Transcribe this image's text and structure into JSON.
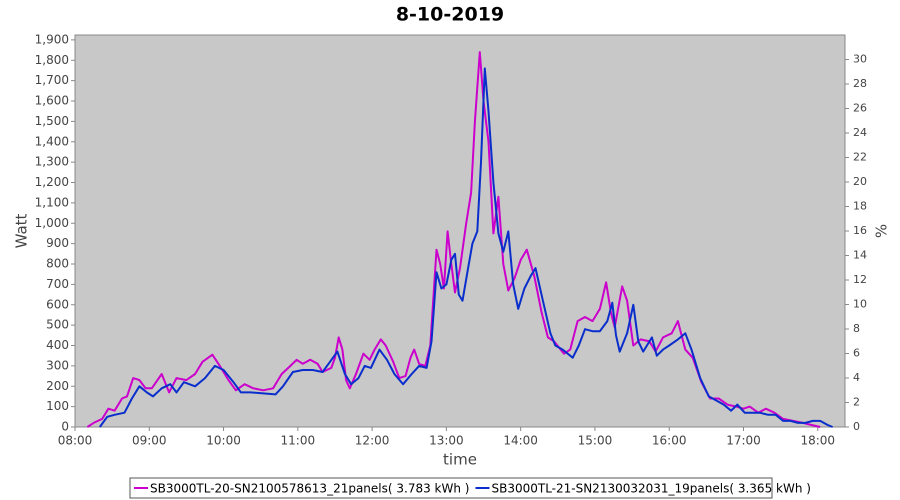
{
  "chart_data": {
    "type": "line",
    "title": "8-10-2019",
    "x_label": "time",
    "y_label": "Watt",
    "y2_label": "%",
    "xlim": [
      480,
      1102
    ],
    "xticks": [
      {
        "value": 480,
        "label": "08:00"
      },
      {
        "value": 540,
        "label": "09:00"
      },
      {
        "value": 600,
        "label": "10:00"
      },
      {
        "value": 660,
        "label": "11:00"
      },
      {
        "value": 720,
        "label": "12:00"
      },
      {
        "value": 780,
        "label": "13:00"
      },
      {
        "value": 840,
        "label": "14:00"
      },
      {
        "value": 900,
        "label": "15:00"
      },
      {
        "value": 960,
        "label": "16:00"
      },
      {
        "value": 1020,
        "label": "17:00"
      },
      {
        "value": 1080,
        "label": "18:00"
      }
    ],
    "ylim": [
      0,
      1924
    ],
    "yticks": [
      0,
      100,
      200,
      300,
      400,
      500,
      600,
      700,
      800,
      900,
      {
        "value": 1000,
        "label": "1,000"
      },
      {
        "value": 1100,
        "label": "1,100"
      },
      {
        "value": 1200,
        "label": "1,200"
      },
      {
        "value": 1300,
        "label": "1,300"
      },
      {
        "value": 1400,
        "label": "1,400"
      },
      {
        "value": 1500,
        "label": "1,500"
      },
      {
        "value": 1600,
        "label": "1,600"
      },
      {
        "value": 1700,
        "label": "1,700"
      },
      {
        "value": 1800,
        "label": "1,800"
      },
      {
        "value": 1900,
        "label": "1,900"
      }
    ],
    "y2lim": [
      0,
      32
    ],
    "y2ticks": [
      0,
      2,
      4,
      6,
      8,
      10,
      12,
      14,
      16,
      18,
      20,
      22,
      24,
      26,
      28,
      30
    ],
    "grid": false,
    "series": [
      {
        "name": "SB3000TL-20-SN2100578613_21panels( 3.783 kWh )",
        "color": "#cc00cc",
        "x": [
          490,
          495,
          502,
          507,
          512,
          518,
          522,
          527,
          532,
          537,
          542,
          550,
          556,
          562,
          570,
          577,
          583,
          591,
          597,
          604,
          610,
          617,
          624,
          632,
          640,
          647,
          654,
          659,
          664,
          670,
          676,
          680,
          687,
          690,
          693,
          696,
          699,
          702,
          707,
          713,
          718,
          722,
          727,
          731,
          737,
          742,
          747,
          751,
          754,
          758,
          763,
          767,
          772,
          775,
          778,
          781,
          784,
          787,
          791,
          796,
          800,
          803,
          807,
          810,
          814,
          818,
          822,
          826,
          830,
          835,
          840,
          845,
          851,
          857,
          862,
          867,
          875,
          880,
          886,
          892,
          898,
          904,
          909,
          913,
          916,
          922,
          926,
          931,
          937,
          944,
          949,
          955,
          962,
          967,
          973,
          979,
          986,
          993,
          1000,
          1007,
          1014,
          1020,
          1025,
          1032,
          1038,
          1045,
          1052,
          1060,
          1068,
          1075,
          1082
        ],
        "values": [
          0,
          20,
          40,
          90,
          80,
          140,
          150,
          240,
          230,
          190,
          190,
          260,
          170,
          240,
          230,
          260,
          320,
          355,
          300,
          230,
          180,
          210,
          190,
          180,
          190,
          260,
          300,
          330,
          310,
          330,
          310,
          270,
          290,
          340,
          440,
          380,
          230,
          190,
          260,
          360,
          330,
          380,
          430,
          400,
          320,
          240,
          250,
          340,
          380,
          310,
          300,
          400,
          870,
          800,
          680,
          960,
          800,
          660,
          780,
          1000,
          1150,
          1500,
          1840,
          1600,
          1400,
          950,
          1130,
          800,
          670,
          730,
          820,
          870,
          740,
          560,
          440,
          420,
          360,
          380,
          520,
          540,
          520,
          580,
          710,
          560,
          490,
          690,
          620,
          400,
          430,
          420,
          370,
          440,
          460,
          520,
          380,
          340,
          220,
          140,
          140,
          110,
          100,
          90,
          100,
          70,
          90,
          70,
          40,
          30,
          20,
          10,
          0
        ]
      },
      {
        "name": "SB3000TL-21-SN2130032031_19panels( 3.365 kWh )",
        "color": "#0a2ecc",
        "x": [
          500,
          506,
          512,
          520,
          526,
          532,
          538,
          543,
          550,
          557,
          562,
          568,
          577,
          585,
          593,
          600,
          608,
          614,
          622,
          632,
          642,
          648,
          656,
          664,
          672,
          680,
          686,
          692,
          698,
          703,
          709,
          714,
          719,
          726,
          732,
          738,
          745,
          752,
          758,
          764,
          768,
          772,
          776,
          780,
          784,
          787,
          790,
          793,
          797,
          801,
          805,
          808,
          811,
          814,
          818,
          822,
          826,
          830,
          834,
          838,
          843,
          848,
          852,
          858,
          864,
          868,
          874,
          882,
          887,
          892,
          898,
          904,
          910,
          914,
          917,
          920,
          926,
          931,
          935,
          939,
          946,
          950,
          955,
          960,
          967,
          973,
          978,
          985,
          992,
          998,
          1004,
          1010,
          1015,
          1021,
          1027,
          1033,
          1040,
          1046,
          1052,
          1058,
          1064,
          1070,
          1076,
          1082,
          1088,
          1092
        ],
        "values": [
          0,
          50,
          60,
          70,
          140,
          200,
          170,
          150,
          190,
          210,
          170,
          220,
          200,
          240,
          300,
          280,
          220,
          170,
          170,
          165,
          160,
          200,
          270,
          280,
          280,
          270,
          320,
          370,
          260,
          210,
          240,
          300,
          290,
          380,
          330,
          260,
          210,
          260,
          300,
          290,
          420,
          760,
          680,
          700,
          820,
          850,
          650,
          620,
          760,
          900,
          960,
          1300,
          1760,
          1550,
          1200,
          950,
          860,
          960,
          700,
          580,
          680,
          740,
          780,
          620,
          460,
          400,
          380,
          340,
          400,
          480,
          470,
          470,
          520,
          610,
          450,
          370,
          460,
          600,
          420,
          370,
          440,
          350,
          380,
          400,
          430,
          460,
          380,
          240,
          150,
          130,
          110,
          80,
          110,
          70,
          70,
          70,
          60,
          60,
          30,
          30,
          20,
          20,
          30,
          30,
          10,
          0
        ]
      }
    ]
  }
}
